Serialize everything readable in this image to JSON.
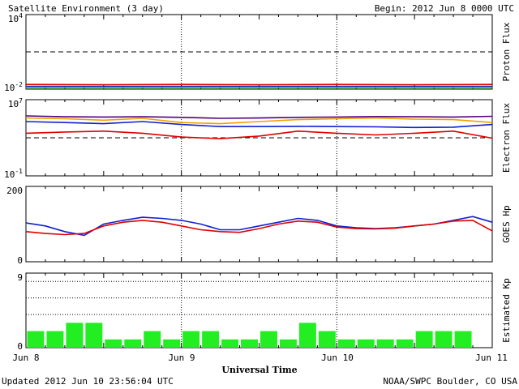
{
  "header": {
    "title": "Satellite Environment (3 day)",
    "begin": "Begin:  2012 Jun 8 0000 UTC"
  },
  "footer": {
    "updated": "Updated 2012 Jun 10 23:56:04 UTC",
    "credit": "NOAA/SWPC Boulder, CO USA"
  },
  "x_axis": {
    "label": "Universal Time",
    "ticks": [
      "Jun 8",
      "Jun 9",
      "Jun 10",
      "Jun 11"
    ]
  },
  "colors": {
    "red": "#e00000",
    "blue": "#1020d0",
    "green": "#10e010",
    "orange": "#f0a000",
    "purple": "#500080",
    "kp_bar": "#22ee22"
  },
  "chart_data": [
    {
      "type": "line",
      "ylabel": "Proton Flux",
      "scale": "log",
      "ylim": [
        0.01,
        10000
      ],
      "y_tick_labels": [
        "10^4",
        "10^-2"
      ],
      "threshold": 10,
      "series": [
        {
          "color": "red",
          "x_hours": [
            0,
            12,
            24,
            36,
            48,
            60,
            72
          ],
          "values": [
            0.024,
            0.023,
            0.024,
            0.023,
            0.024,
            0.023,
            0.024
          ]
        },
        {
          "color": "blue",
          "x_hours": [
            0,
            12,
            24,
            36,
            48,
            60,
            72
          ],
          "values": [
            0.017,
            0.017,
            0.017,
            0.017,
            0.017,
            0.017,
            0.017
          ]
        },
        {
          "color": "green",
          "x_hours": [
            0,
            12,
            24,
            36,
            48,
            60,
            72
          ],
          "values": [
            0.013,
            0.013,
            0.013,
            0.013,
            0.013,
            0.013,
            0.013
          ]
        }
      ]
    },
    {
      "type": "line",
      "ylabel": "Electron Flux",
      "scale": "log",
      "ylim": [
        0.1,
        10000000
      ],
      "y_tick_labels": [
        "10^7",
        "10^-1"
      ],
      "threshold": 1000,
      "series": [
        {
          "color": "purple",
          "x_hours": [
            0,
            6,
            12,
            18,
            24,
            30,
            36,
            42,
            48,
            54,
            60,
            66,
            72
          ],
          "values": [
            200000,
            160000,
            150000,
            160000,
            140000,
            110000,
            120000,
            140000,
            150000,
            170000,
            160000,
            150000,
            180000
          ]
        },
        {
          "color": "orange",
          "x_hours": [
            0,
            6,
            12,
            18,
            24,
            30,
            36,
            42,
            48,
            54,
            60,
            66,
            72
          ],
          "values": [
            120000,
            100000,
            70000,
            110000,
            40000,
            30000,
            50000,
            80000,
            100000,
            120000,
            90000,
            80000,
            40000
          ]
        },
        {
          "color": "blue",
          "x_hours": [
            0,
            6,
            12,
            18,
            24,
            30,
            36,
            42,
            48,
            54,
            60,
            66,
            72
          ],
          "values": [
            50000,
            40000,
            30000,
            50000,
            25000,
            15000,
            15000,
            16000,
            15000,
            14000,
            12000,
            13000,
            25000
          ]
        },
        {
          "color": "red",
          "x_hours": [
            0,
            6,
            12,
            18,
            24,
            30,
            36,
            42,
            48,
            54,
            60,
            66,
            72
          ],
          "values": [
            3000,
            4000,
            5000,
            3000,
            1200,
            800,
            1500,
            5000,
            3000,
            2000,
            3000,
            5000,
            900
          ]
        }
      ]
    },
    {
      "type": "line",
      "ylabel": "GOES Hp",
      "scale": "linear",
      "ylim": [
        0,
        200
      ],
      "y_tick_labels": [
        "200",
        "0"
      ],
      "series": [
        {
          "color": "blue",
          "x_hours": [
            0,
            3,
            6,
            9,
            12,
            15,
            18,
            21,
            24,
            27,
            30,
            33,
            36,
            39,
            42,
            45,
            48,
            51,
            54,
            57,
            60,
            63,
            66,
            69,
            72
          ],
          "values": [
            103,
            95,
            80,
            70,
            100,
            110,
            118,
            115,
            110,
            100,
            85,
            85,
            95,
            105,
            115,
            110,
            95,
            90,
            88,
            90,
            95,
            100,
            110,
            120,
            105
          ]
        },
        {
          "color": "red",
          "x_hours": [
            0,
            3,
            6,
            9,
            12,
            15,
            18,
            21,
            24,
            27,
            30,
            33,
            36,
            39,
            42,
            45,
            48,
            51,
            54,
            57,
            60,
            63,
            66,
            69,
            72
          ],
          "values": [
            80,
            75,
            72,
            75,
            95,
            105,
            110,
            105,
            95,
            85,
            80,
            78,
            88,
            100,
            108,
            105,
            92,
            88,
            87,
            89,
            95,
            100,
            108,
            110,
            82
          ]
        }
      ]
    },
    {
      "type": "bar",
      "ylabel": "Estimated Kp",
      "ylim": [
        0,
        9
      ],
      "y_tick_labels": [
        "9",
        "0"
      ],
      "dotted_levels": [
        4,
        6,
        8
      ],
      "interval_hours": 3,
      "values": [
        2,
        2,
        3,
        3,
        1,
        1,
        2,
        1,
        2,
        2,
        1,
        1,
        2,
        1,
        3,
        2,
        1,
        1,
        1,
        1,
        2,
        2,
        2,
        0
      ]
    }
  ]
}
